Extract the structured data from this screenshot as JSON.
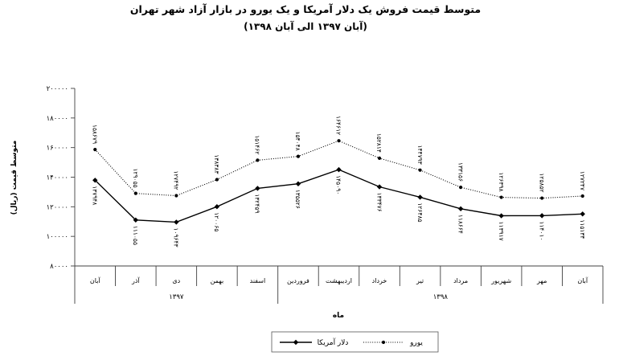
{
  "chart_data": {
    "type": "line",
    "title": "متوسط قیمت فروش یک دلار آمریکا و یک یورو در بازار آزاد شهر تهران",
    "subtitle": "(آبان ۱۳۹۷ الی آبان ۱۳۹۸)",
    "xlabel": "ماه",
    "ylabel": "متوسط قیمت (ریال)",
    "ylim": [
      80000,
      200000
    ],
    "yticks": [
      80000,
      100000,
      120000,
      140000,
      160000,
      180000,
      200000
    ],
    "ytick_labels": [
      "۸۰۰۰۰",
      "۱۰۰۰۰۰",
      "۱۲۰۰۰۰",
      "۱۴۰۰۰۰",
      "۱۶۰۰۰۰",
      "۱۸۰۰۰۰",
      "۲۰۰۰۰۰"
    ],
    "x_groups": [
      {
        "label": "۱۳۹۷",
        "categories": [
          "آبان",
          "آذر",
          "دی",
          "بهمن",
          "اسفند"
        ]
      },
      {
        "label": "۱۳۹۸",
        "categories": [
          "فروردین",
          "اردیبهشت",
          "خرداد",
          "تیر",
          "مرداد",
          "شهریور",
          "مهر",
          "آبان"
        ]
      }
    ],
    "series": [
      {
        "name": "دلار آمریکا",
        "line_style": "solid",
        "marker": "diamond",
        "color": "#000000",
        "label_position": "below",
        "values": [
          137948,
          111055,
          109643,
          120065,
          132459,
          135526,
          145090,
          133476,
          126485,
          118664,
          113917,
          114010,
          115134
        ],
        "labels": [
          "۱۳۷۹۴۸",
          "۱۱۱۰۵۵",
          "۱۰۹۶۴۳",
          "۱۲۰۰۶۵",
          "۱۳۲۴۵۹",
          "۱۳۵۵۲۶",
          "۱۴۵۰۹۰",
          "۱۳۳۴۷۶",
          "۱۲۶۴۸۵",
          "۱۱۸۶۶۴",
          "۱۱۳۹۱۷",
          "۱۱۴۰۱۰",
          "۱۱۵۱۳۴"
        ]
      },
      {
        "name": "یورو",
        "line_style": "dotted",
        "marker": "circle",
        "color": "#000000",
        "label_position": "above",
        "values": [
          158679,
          129055,
          127492,
          138383,
          151462,
          154048,
          164612,
          152814,
          144793,
          133156,
          126398,
          125852,
          127247
        ],
        "labels": [
          "۱۵۸۶۷۹",
          "۱۲۹۰۵۵",
          "۱۲۷۴۹۲",
          "۱۳۸۳۸۳",
          "۱۵۱۴۶۲",
          "۱۵۴۰۴۸",
          "۱۶۴۶۱۲",
          "۱۵۲۸۱۴",
          "۱۴۴۷۹۳",
          "۱۳۳۱۵۶",
          "۱۲۶۳۹۸",
          "۱۲۵۸۵۲",
          "۱۲۷۲۴۷"
        ]
      }
    ],
    "grid": false,
    "legend_position": "bottom"
  }
}
